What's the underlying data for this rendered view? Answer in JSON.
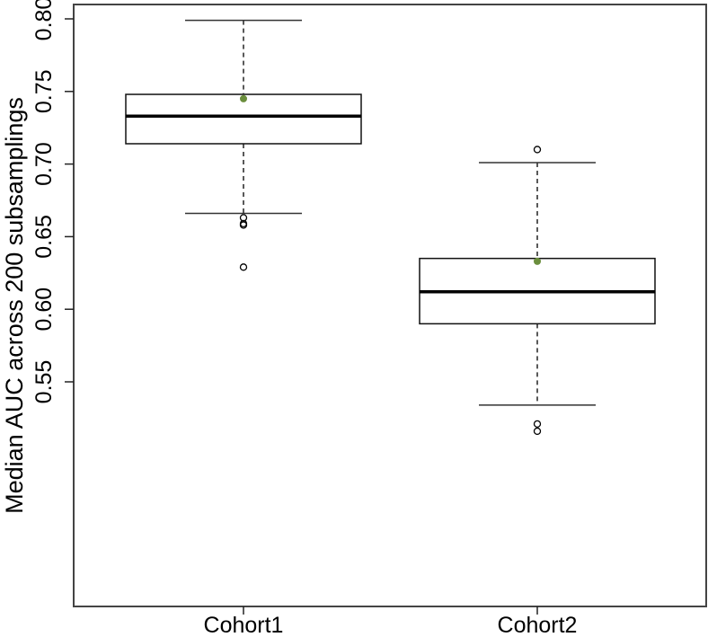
{
  "chart_data": {
    "type": "boxplot",
    "title": "",
    "xlabel": "",
    "ylabel": "Median AUC across 200 subsamplings",
    "ylim": [
      0.505,
      0.805
    ],
    "yticks": [
      "0.55",
      "0.60",
      "0.65",
      "0.70",
      "0.75",
      "0.80"
    ],
    "ytick_values": [
      0.55,
      0.6,
      0.65,
      0.7,
      0.75,
      0.8
    ],
    "categories": [
      "Cohort1",
      "Cohort2"
    ],
    "grid": false,
    "legend": null,
    "series": [
      {
        "name": "Cohort1",
        "whisker_low": 0.666,
        "q1": 0.714,
        "median": 0.733,
        "q3": 0.748,
        "whisker_high": 0.799,
        "mean": 0.745,
        "outliers": [
          0.663,
          0.659,
          0.658,
          0.629
        ]
      },
      {
        "name": "Cohort2",
        "whisker_low": 0.534,
        "q1": 0.59,
        "median": 0.612,
        "q3": 0.635,
        "whisker_high": 0.701,
        "mean": 0.633,
        "outliers": [
          0.71,
          0.521,
          0.516
        ]
      }
    ],
    "colors": {
      "mean_point": "#6b8e3d",
      "box_stroke": "#000000",
      "axis": "#444444"
    }
  }
}
